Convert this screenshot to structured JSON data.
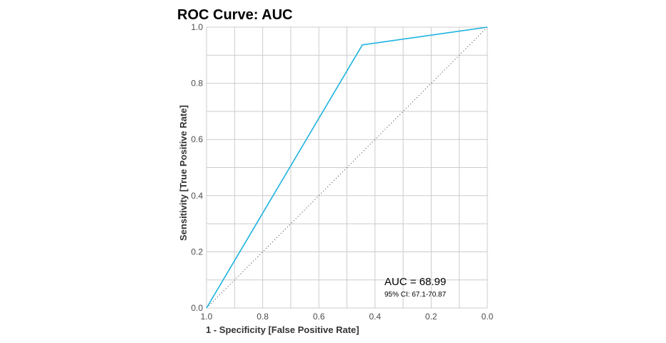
{
  "chart_data": {
    "type": "line",
    "title": "ROC Curve: AUC",
    "xlabel": "1 - Specificity [False Positive Rate]",
    "ylabel": "Sensitivity [True Positive Rate]",
    "xlim": [
      1.0,
      0.0
    ],
    "ylim": [
      0.0,
      1.0
    ],
    "x_reversed": true,
    "x_ticks": [
      "1.0",
      "0.8",
      "0.6",
      "0.4",
      "0.2",
      "0.0"
    ],
    "y_ticks": [
      "0.0",
      "0.2",
      "0.4",
      "0.6",
      "0.8",
      "1.0"
    ],
    "grid": true,
    "series": [
      {
        "color": "#1fb3e0",
        "x": [
          1.0,
          0.445,
          0.0
        ],
        "y": [
          0.0,
          0.937,
          1.0
        ]
      }
    ],
    "reference_line": {
      "x": [
        1.0,
        0.0
      ],
      "y": [
        0.0,
        1.0
      ],
      "style": "dotted",
      "color": "#555555"
    },
    "annotations": {
      "auc": "AUC = 68.99",
      "ci": "95% CI: 67.1-70.87"
    }
  }
}
